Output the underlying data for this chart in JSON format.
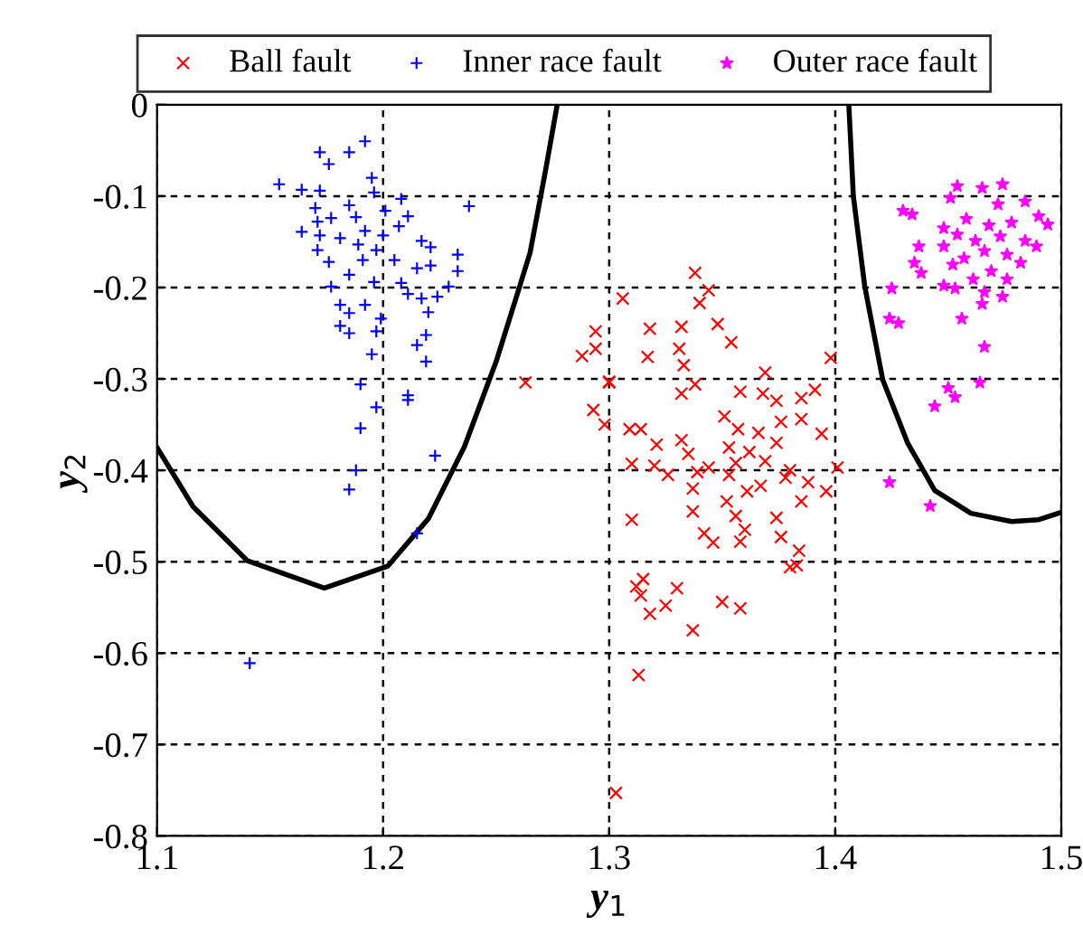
{
  "chart_data": {
    "type": "scatter",
    "xlabel": "y$_{1}$",
    "ylabel": "y$_{2}$",
    "xlim": [
      1.1,
      1.5
    ],
    "ylim": [
      -0.8,
      0
    ],
    "xticks": [
      1.1,
      1.2,
      1.3,
      1.4,
      1.5
    ],
    "yticks": [
      -0.8,
      -0.7,
      -0.6,
      -0.5,
      -0.4,
      -0.3,
      -0.2,
      -0.1,
      0
    ],
    "grid": true,
    "legend": "top",
    "series": [
      {
        "name": "Ball fault",
        "color": "#ff0000",
        "marker": "cross",
        "x": [
          1.338,
          1.306,
          1.344,
          1.34,
          1.348,
          1.354,
          1.294,
          1.318,
          1.332,
          1.288,
          1.294,
          1.317,
          1.331,
          1.333,
          1.263,
          1.3,
          1.369,
          1.338,
          1.332,
          1.398,
          1.358,
          1.368,
          1.374,
          1.385,
          1.391,
          1.293,
          1.298,
          1.351,
          1.376,
          1.385,
          1.309,
          1.314,
          1.357,
          1.366,
          1.394,
          1.321,
          1.332,
          1.353,
          1.362,
          1.374,
          1.335,
          1.31,
          1.32,
          1.344,
          1.356,
          1.369,
          1.38,
          1.401,
          1.326,
          1.339,
          1.353,
          1.378,
          1.388,
          1.337,
          1.361,
          1.367,
          1.385,
          1.396,
          1.352,
          1.337,
          1.31,
          1.356,
          1.374,
          1.36,
          1.342,
          1.376,
          1.346,
          1.358,
          1.384,
          1.38,
          1.383,
          1.315,
          1.312,
          1.33,
          1.314,
          1.325,
          1.318,
          1.35,
          1.358,
          1.337,
          1.313,
          1.303,
          1.3
        ],
        "values": [
          -0.184,
          -0.212,
          -0.203,
          -0.217,
          -0.24,
          -0.26,
          -0.248,
          -0.245,
          -0.243,
          -0.275,
          -0.267,
          -0.276,
          -0.267,
          -0.285,
          -0.304,
          -0.303,
          -0.293,
          -0.306,
          -0.316,
          -0.277,
          -0.314,
          -0.316,
          -0.324,
          -0.321,
          -0.312,
          -0.334,
          -0.35,
          -0.341,
          -0.347,
          -0.344,
          -0.355,
          -0.355,
          -0.355,
          -0.359,
          -0.36,
          -0.372,
          -0.367,
          -0.375,
          -0.38,
          -0.37,
          -0.382,
          -0.393,
          -0.395,
          -0.397,
          -0.392,
          -0.39,
          -0.4,
          -0.397,
          -0.405,
          -0.402,
          -0.405,
          -0.408,
          -0.413,
          -0.42,
          -0.423,
          -0.417,
          -0.434,
          -0.423,
          -0.434,
          -0.445,
          -0.454,
          -0.45,
          -0.452,
          -0.465,
          -0.469,
          -0.473,
          -0.479,
          -0.478,
          -0.488,
          -0.506,
          -0.504,
          -0.519,
          -0.527,
          -0.529,
          -0.537,
          -0.548,
          -0.557,
          -0.544,
          -0.551,
          -0.575,
          -0.624,
          -0.753,
          -0.304
        ]
      },
      {
        "name": "Inner race fault",
        "color": "#0000ff",
        "marker": "plus",
        "x": [
          1.192,
          1.185,
          1.172,
          1.176,
          1.195,
          1.154,
          1.164,
          1.172,
          1.196,
          1.208,
          1.238,
          1.185,
          1.17,
          1.201,
          1.211,
          1.171,
          1.177,
          1.188,
          1.164,
          1.192,
          1.207,
          1.172,
          1.181,
          1.2,
          1.217,
          1.171,
          1.189,
          1.197,
          1.233,
          1.221,
          1.176,
          1.191,
          1.205,
          1.221,
          1.185,
          1.196,
          1.208,
          1.233,
          1.215,
          1.229,
          1.177,
          1.211,
          1.217,
          1.224,
          1.181,
          1.192,
          1.185,
          1.199,
          1.181,
          1.22,
          1.185,
          1.197,
          1.219,
          1.215,
          1.219,
          1.195,
          1.19,
          1.211,
          1.211,
          1.197,
          1.19,
          1.223,
          1.188,
          1.185,
          1.215,
          1.141
        ],
        "values": [
          -0.04,
          -0.052,
          -0.052,
          -0.065,
          -0.08,
          -0.087,
          -0.093,
          -0.094,
          -0.096,
          -0.103,
          -0.111,
          -0.11,
          -0.113,
          -0.116,
          -0.122,
          -0.128,
          -0.124,
          -0.123,
          -0.139,
          -0.138,
          -0.133,
          -0.143,
          -0.146,
          -0.143,
          -0.149,
          -0.159,
          -0.153,
          -0.159,
          -0.164,
          -0.156,
          -0.172,
          -0.17,
          -0.17,
          -0.176,
          -0.186,
          -0.194,
          -0.195,
          -0.182,
          -0.179,
          -0.199,
          -0.199,
          -0.207,
          -0.212,
          -0.21,
          -0.219,
          -0.219,
          -0.228,
          -0.234,
          -0.242,
          -0.227,
          -0.25,
          -0.248,
          -0.252,
          -0.263,
          -0.281,
          -0.273,
          -0.306,
          -0.318,
          -0.323,
          -0.331,
          -0.354,
          -0.384,
          -0.4,
          -0.421,
          -0.469,
          -0.611
        ]
      },
      {
        "name": "Outer race fault",
        "color": "#ff00ff",
        "marker": "star",
        "x": [
          1.474,
          1.454,
          1.465,
          1.484,
          1.451,
          1.472,
          1.43,
          1.434,
          1.49,
          1.494,
          1.448,
          1.458,
          1.468,
          1.478,
          1.454,
          1.462,
          1.473,
          1.484,
          1.489,
          1.437,
          1.448,
          1.466,
          1.476,
          1.457,
          1.452,
          1.435,
          1.482,
          1.438,
          1.469,
          1.461,
          1.476,
          1.448,
          1.453,
          1.425,
          1.466,
          1.474,
          1.465,
          1.456,
          1.424,
          1.428,
          1.466,
          1.464,
          1.45,
          1.453,
          1.444,
          1.424,
          1.442
        ],
        "values": [
          -0.087,
          -0.089,
          -0.091,
          -0.106,
          -0.102,
          -0.109,
          -0.116,
          -0.12,
          -0.122,
          -0.131,
          -0.135,
          -0.125,
          -0.132,
          -0.129,
          -0.142,
          -0.149,
          -0.144,
          -0.149,
          -0.155,
          -0.155,
          -0.155,
          -0.16,
          -0.164,
          -0.168,
          -0.175,
          -0.173,
          -0.173,
          -0.184,
          -0.182,
          -0.191,
          -0.191,
          -0.198,
          -0.201,
          -0.201,
          -0.205,
          -0.21,
          -0.218,
          -0.234,
          -0.234,
          -0.239,
          -0.265,
          -0.304,
          -0.31,
          -0.32,
          -0.33,
          -0.413,
          -0.439
        ]
      },
      {
        "type": "line",
        "color": "#000000",
        "x": [
          1.1,
          1.116,
          1.14,
          1.174,
          1.202,
          1.22,
          1.236,
          1.25,
          1.26,
          1.265,
          1.272,
          1.277
        ],
        "values": [
          -0.375,
          -0.44,
          -0.499,
          -0.529,
          -0.505,
          -0.453,
          -0.374,
          -0.281,
          -0.202,
          -0.162,
          -0.07,
          0
        ]
      },
      {
        "type": "line",
        "color": "#000000",
        "x": [
          1.406,
          1.408,
          1.413,
          1.421,
          1.432,
          1.444,
          1.46,
          1.478,
          1.49,
          1.5
        ],
        "values": [
          0,
          -0.1,
          -0.198,
          -0.301,
          -0.37,
          -0.422,
          -0.447,
          -0.456,
          -0.454,
          -0.446
        ]
      }
    ]
  }
}
